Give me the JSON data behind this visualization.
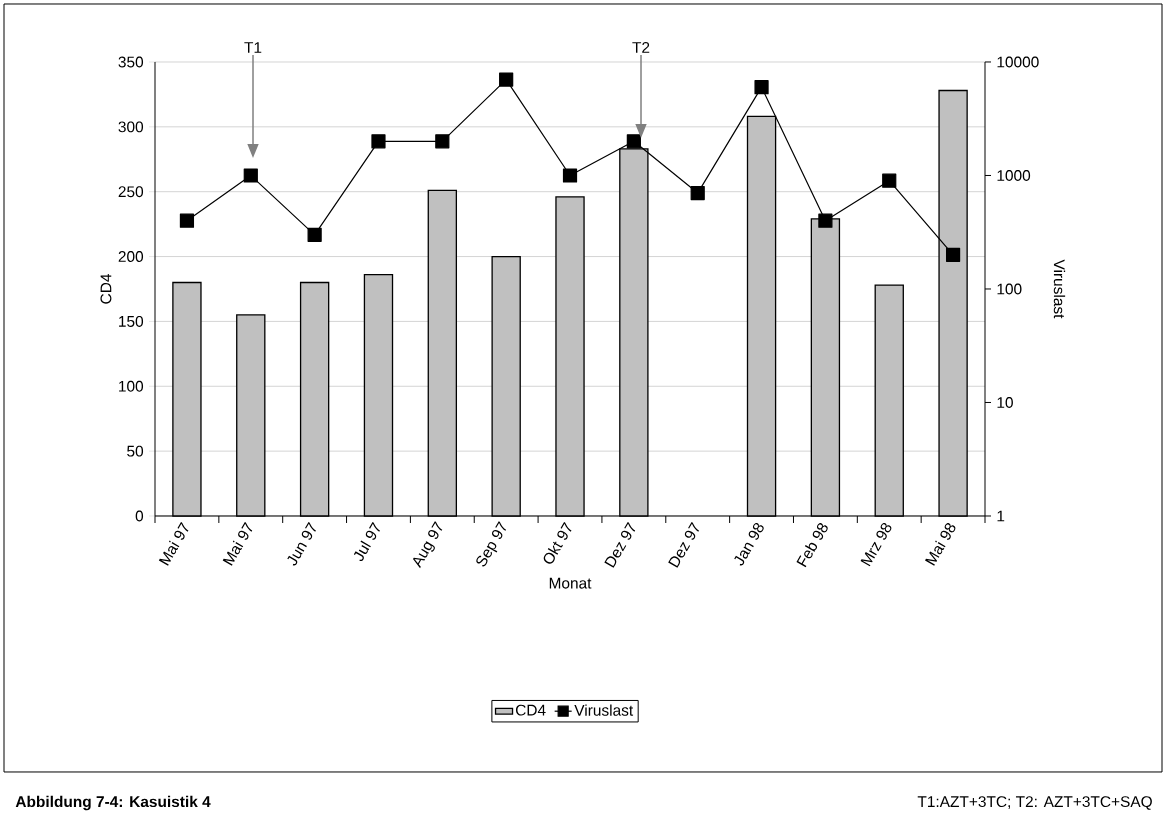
{
  "chart_data": {
    "type": "bar",
    "title": "Abbildung 7-4: Kasuistik 4",
    "xlabel": "Monat",
    "ylabel": "CD4",
    "y2label": "Viruslast",
    "categories": [
      "Mai 97",
      "Mai 97",
      "Jun 97",
      "Jul 97",
      "Aug 97",
      "Sep 97",
      "Okt 97",
      "Dez 97",
      "Dez 97",
      "Jan 98",
      "Feb 98",
      "Mrz 98",
      "Mai 98"
    ],
    "series": [
      {
        "name": "CD4",
        "color": "#c0c0c0",
        "values": [
          180,
          155,
          180,
          186,
          251,
          200,
          246,
          283,
          null,
          308,
          229,
          178,
          328
        ]
      },
      {
        "name": "Viruslast",
        "type": "line",
        "axis": "y2",
        "color": "#000000",
        "marker": "square",
        "values": [
          400,
          1000,
          300,
          2000,
          2000,
          7000,
          1000,
          2000,
          700,
          6000,
          400,
          900,
          200
        ]
      }
    ],
    "ylim": [
      0,
      350
    ],
    "yticks": [
      0,
      50,
      100,
      150,
      200,
      250,
      300,
      350
    ],
    "y2lim": [
      1,
      10000
    ],
    "y2ticks": [
      1,
      10,
      100,
      1000,
      10000
    ],
    "log": "y2",
    "grid": "y",
    "legend": "bottom",
    "annotations": [
      "T1",
      "T2",
      "T1:AZT+3TC; T2: AZT+3TC+SAQ"
    ]
  }
}
